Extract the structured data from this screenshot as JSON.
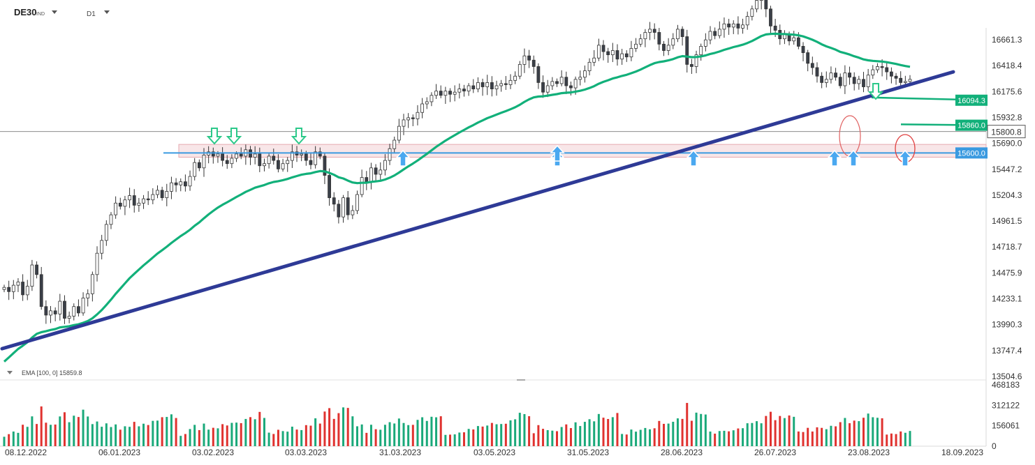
{
  "header": {
    "symbol": "DE30",
    "symbol_type": "IND",
    "timeframe": "D1",
    "symbol_dropdown_icon": "caret-down-icon",
    "timeframe_dropdown_icon": "caret-down-icon"
  },
  "indicator_label": "EMA  [100,  0]  15859.8",
  "colors": {
    "up_candle": "#ffffff",
    "down_candle": "#3a3f48",
    "ema": "#12b07a",
    "trendline": "#2e3a96",
    "support": "#3a9ae0",
    "support_zone": "#f4d6d8",
    "vol_up": "#1aa97a",
    "vol_down": "#e0322f",
    "arrow_up": "#4aa8f0",
    "arrow_down": "#2cc98a"
  },
  "chart_data": {
    "type": "candlestick",
    "title": "DE30",
    "timeframe": "D1",
    "y_ticks": [
      "16661.3",
      "16418.4",
      "16175.6",
      "15932.8",
      "15690.0",
      "15447.2",
      "15204.3",
      "14961.5",
      "14718.7",
      "14475.9",
      "14233.1",
      "13990.3",
      "13747.4",
      "13504.6"
    ],
    "ylim": [
      13504.6,
      16661.3
    ],
    "x_ticks": [
      "08.12.2022",
      "06.01.2023",
      "03.02.2023",
      "03.03.2023",
      "31.03.2023",
      "03.05.2023",
      "31.05.2023",
      "28.06.2023",
      "26.07.2023",
      "23.08.2023",
      "18.09.2023"
    ],
    "last_price": "15800.8",
    "price_tags": [
      {
        "label": "16094.3",
        "value": 16094.3,
        "color": "#12b07a"
      },
      {
        "label": "15860.0",
        "value": 15860.0,
        "color": "#12b07a"
      },
      {
        "label": "15600.0",
        "value": 15600.0,
        "color": "#3a9ae0"
      }
    ],
    "ema_100_last": 15859.8,
    "support_level": 15600.0,
    "support_zone": [
      15560,
      15680
    ],
    "volume": {
      "y_ticks": [
        "468183",
        "312122",
        "156061",
        "0"
      ],
      "ylim": [
        0,
        468183
      ]
    }
  }
}
